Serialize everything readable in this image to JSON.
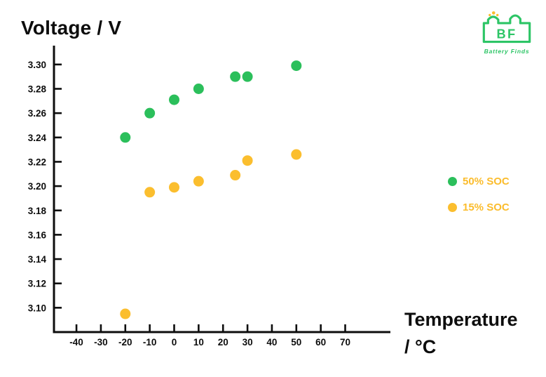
{
  "title": "Voltage / V",
  "xaxis_title": {
    "line1": "Temperature",
    "line2": "/ °C"
  },
  "legend": [
    {
      "label": "50% SOC",
      "dot_color": "#2BBF5B",
      "label_color": "#FBBC2C"
    },
    {
      "label": "15% SOC",
      "dot_color": "#FBBE2E",
      "label_color": "#FBBC2C"
    }
  ],
  "logo": {
    "monogram": "BF",
    "brand": "Battery  Finds",
    "color": "#2DC566",
    "sparkle_color": "#FBBE2E"
  },
  "colors": {
    "axis": "#0d0d0d",
    "background": "#ffffff",
    "green_series": "#2BBF5B",
    "yellow_series": "#FBBE2E"
  },
  "chart_data": {
    "type": "scatter",
    "title": "Voltage / V",
    "xlabel": "Temperature / °C",
    "ylabel": "Voltage / V",
    "grid": false,
    "legend_position": "right",
    "x_ticks": [
      -40,
      -30,
      -20,
      -10,
      0,
      10,
      20,
      30,
      40,
      50,
      60,
      70
    ],
    "y_tick_labels": [
      "3.30",
      "3.28",
      "3.26",
      "3.24",
      "3.22",
      "3.20",
      "3.18",
      "3.16",
      "3.14",
      "3.12",
      "3.10"
    ],
    "xlim": [
      -49.2,
      88.5
    ],
    "ylim": [
      3.08,
      3.3155
    ],
    "marker_diameter_px": 15,
    "series": [
      {
        "name": "50% SOC",
        "color": "#2BBF5B",
        "points": [
          [
            -20,
            3.24
          ],
          [
            -10,
            3.26
          ],
          [
            0,
            3.271
          ],
          [
            10,
            3.28
          ],
          [
            25,
            3.29
          ],
          [
            30,
            3.29
          ],
          [
            50,
            3.299
          ]
        ]
      },
      {
        "name": "15% SOC",
        "color": "#FBBE2E",
        "points": [
          [
            -20,
            3.095
          ],
          [
            -10,
            3.195
          ],
          [
            0,
            3.199
          ],
          [
            10,
            3.204
          ],
          [
            25,
            3.209
          ],
          [
            30,
            3.221
          ],
          [
            50,
            3.226
          ]
        ]
      }
    ]
  }
}
